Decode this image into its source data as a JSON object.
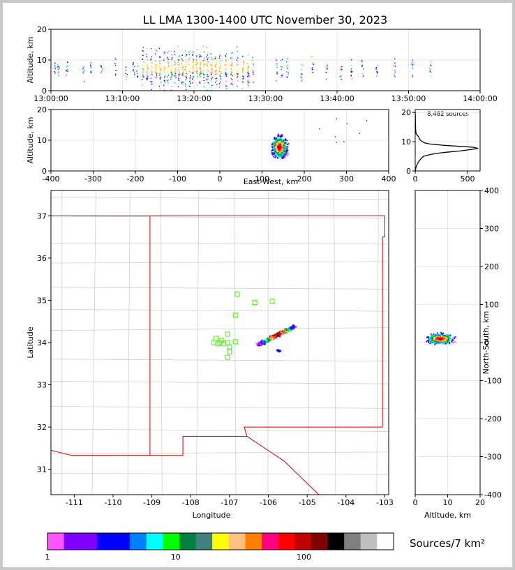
{
  "title": "LL LMA 1300-1400 UTC November 30, 2023",
  "source_count_label": "8,482 sources",
  "colorbar": {
    "label": "Sources/7 km²",
    "colors": [
      "#ff55ff",
      "#8000ff",
      "#8000ff",
      "#0000ff",
      "#0000ff",
      "#0080ff",
      "#00ffff",
      "#00ff00",
      "#008040",
      "#408080",
      "#ffff00",
      "#ffc080",
      "#ff8000",
      "#ff0080",
      "#ff0000",
      "#c00000",
      "#800000",
      "#000000",
      "#808080",
      "#c0c0c0",
      "#ffffff"
    ],
    "ticks": [
      {
        "value": 1,
        "label": "1"
      },
      {
        "value": 10,
        "label": "10"
      },
      {
        "value": 100,
        "label": "100"
      }
    ]
  },
  "chart_data": [
    {
      "type": "scatter",
      "name": "time-height",
      "ylabel": "Altitude, km",
      "xlim": [
        "13:00:00",
        "14:00:00"
      ],
      "ylim": [
        0,
        20
      ],
      "xticks": [
        "13:00:00",
        "13:10:00",
        "13:20:00",
        "13:30:00",
        "13:40:00",
        "13:50:00",
        "14:00:00"
      ],
      "yticks": [
        0,
        10,
        20
      ],
      "activity_minutes": [
        0.5,
        1.0,
        2.2,
        4.5,
        5.5,
        7.0,
        9.0,
        10.5,
        11.5,
        12.0,
        12.8,
        13.4,
        14.0,
        14.6,
        15.2,
        15.8,
        16.3,
        16.8,
        17.3,
        17.8,
        18.3,
        18.8,
        19.3,
        19.8,
        20.3,
        20.8,
        21.3,
        21.8,
        22.4,
        23.0,
        23.6,
        24.4,
        25.2,
        26.0,
        26.8,
        27.5,
        28.2,
        31.5,
        32.2,
        33.0,
        35.0,
        36.5,
        38.5,
        40.5,
        42.0,
        43.5,
        45.5,
        48.0,
        50.5,
        53.0
      ]
    },
    {
      "type": "scatter",
      "name": "east-west-altitude",
      "ylabel": "Altitude, km",
      "xlabel": "East-West, km",
      "xlim": [
        -400,
        400
      ],
      "ylim": [
        0,
        20
      ],
      "xticks": [
        -400,
        -300,
        -200,
        -100,
        0,
        100,
        200,
        300,
        400
      ],
      "yticks": [
        0,
        10,
        20
      ],
      "core": {
        "x": 140,
        "y": 8
      }
    },
    {
      "type": "line",
      "name": "altitude-histogram",
      "xlim": [
        0,
        620
      ],
      "ylim": [
        0,
        21
      ],
      "xticks": [
        0,
        500
      ],
      "yticks": [
        0,
        10,
        20
      ],
      "points": [
        [
          2,
          0
        ],
        [
          5,
          1
        ],
        [
          15,
          2
        ],
        [
          30,
          3
        ],
        [
          50,
          4
        ],
        [
          80,
          5
        ],
        [
          130,
          5.5
        ],
        [
          200,
          6
        ],
        [
          300,
          6.4
        ],
        [
          420,
          6.8
        ],
        [
          530,
          7.3
        ],
        [
          600,
          7.7
        ],
        [
          560,
          8.1
        ],
        [
          430,
          8.4
        ],
        [
          260,
          8.8
        ],
        [
          140,
          9.2
        ],
        [
          90,
          9.6
        ],
        [
          70,
          10
        ],
        [
          50,
          10.5
        ],
        [
          40,
          11
        ],
        [
          35,
          11.5
        ],
        [
          25,
          12
        ],
        [
          12,
          12.5
        ],
        [
          8,
          13
        ],
        [
          4,
          14
        ],
        [
          3,
          15
        ],
        [
          2,
          17
        ],
        [
          1,
          20
        ]
      ]
    },
    {
      "type": "scatter",
      "name": "plan-view",
      "xlabel": "Longitude",
      "ylabel": "Latitude",
      "xlim": [
        -111.6,
        -102.9
      ],
      "ylim": [
        30.4,
        37.6
      ],
      "xticks": [
        -111,
        -110,
        -109,
        -108,
        -107,
        -106,
        -105,
        -104,
        -103
      ],
      "yticks": [
        31,
        32,
        33,
        34,
        35,
        36,
        37
      ],
      "stations": [
        [
          -106.8,
          35.15
        ],
        [
          -106.35,
          34.95
        ],
        [
          -105.9,
          34.98
        ],
        [
          -106.85,
          34.65
        ],
        [
          -107.05,
          34.2
        ],
        [
          -107.35,
          34.1
        ],
        [
          -107.2,
          34.05
        ],
        [
          -107.4,
          34.0
        ],
        [
          -107.25,
          34.0
        ],
        [
          -107.05,
          34.0
        ],
        [
          -106.85,
          34.02
        ],
        [
          -107.3,
          33.97
        ],
        [
          -107.15,
          33.97
        ],
        [
          -107.0,
          33.9
        ],
        [
          -107.0,
          33.78
        ],
        [
          -107.05,
          33.65
        ]
      ],
      "core": {
        "lon": -105.7,
        "lat": 34.1
      }
    },
    {
      "type": "scatter",
      "name": "altitude-north-south",
      "xlabel": "Altitude, km",
      "ylabel": "North-South, km",
      "xlim": [
        0,
        20
      ],
      "ylim": [
        -400,
        400
      ],
      "xticks": [
        0,
        10,
        20
      ],
      "yticks": [
        -400,
        -300,
        -200,
        -100,
        0,
        100,
        200,
        300,
        400
      ],
      "core": {
        "x": 7.5,
        "y": 12
      }
    }
  ]
}
